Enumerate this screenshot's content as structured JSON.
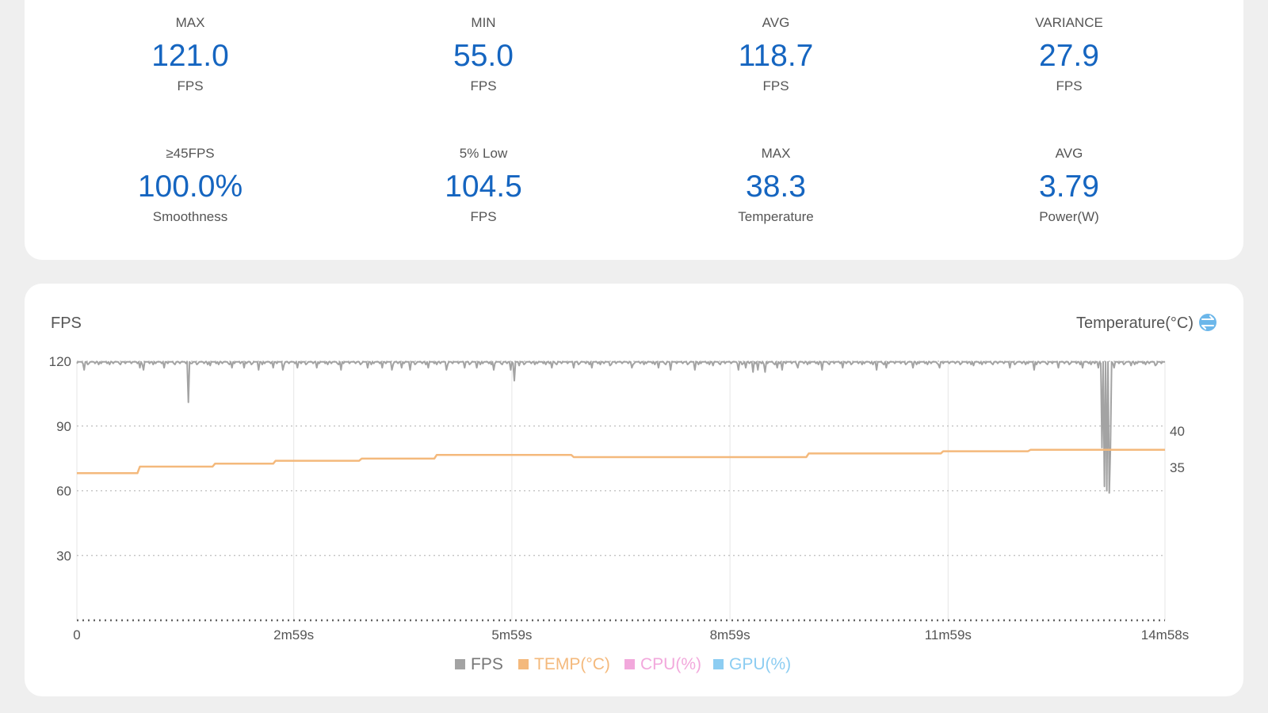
{
  "stats": [
    {
      "label": "MAX",
      "value": "121.0",
      "unit": "FPS"
    },
    {
      "label": "MIN",
      "value": "55.0",
      "unit": "FPS"
    },
    {
      "label": "AVG",
      "value": "118.7",
      "unit": "FPS"
    },
    {
      "label": "VARIANCE",
      "value": "27.9",
      "unit": "FPS"
    },
    {
      "label": "≥45FPS",
      "value": "100.0%",
      "unit": "Smoothness"
    },
    {
      "label": "5% Low",
      "value": "104.5",
      "unit": "FPS"
    },
    {
      "label": "MAX",
      "value": "38.3",
      "unit": "Temperature"
    },
    {
      "label": "AVG",
      "value": "3.79",
      "unit": "Power(W)"
    }
  ],
  "colors": {
    "accent": "#1565c0",
    "fps": "#a3a3a3",
    "temp": "#f4b97c",
    "cpu": "#f2a8dc",
    "gpu": "#8ccdf2",
    "swap_icon": "#6cb7ea"
  },
  "chart_data": {
    "type": "line",
    "left_axis_title": "FPS",
    "right_axis_title": "Temperature(°C)",
    "swap_icon": "swap-axis-icon",
    "x_ticks": [
      {
        "t": 0,
        "label": "0"
      },
      {
        "t": 179,
        "label": "2m59s"
      },
      {
        "t": 359,
        "label": "5m59s"
      },
      {
        "t": 539,
        "label": "8m59s"
      },
      {
        "t": 719,
        "label": "11m59s"
      },
      {
        "t": 898,
        "label": "14m58s"
      }
    ],
    "xlim": [
      0,
      898
    ],
    "y_left_ticks": [
      30,
      60,
      90,
      120
    ],
    "y_left_lim": [
      0,
      120
    ],
    "y_right_ticks": [
      35,
      40
    ],
    "y_right_lim": [
      14.1,
      49.5
    ],
    "legend": [
      {
        "name": "FPS",
        "color": "#a3a3a3"
      },
      {
        "name": "TEMP(°C)",
        "color": "#f4b97c"
      },
      {
        "name": "CPU(%)",
        "color": "#f2a8dc"
      },
      {
        "name": "GPU(%)",
        "color": "#8ccdf2"
      }
    ],
    "series": [
      {
        "name": "FPS",
        "axis": "left",
        "baseline": 120,
        "dips": [
          [
            6,
            116
          ],
          [
            52,
            117
          ],
          [
            55,
            116
          ],
          [
            72,
            117
          ],
          [
            92,
            101
          ],
          [
            94,
            119
          ],
          [
            110,
            118
          ],
          [
            128,
            117
          ],
          [
            138,
            117
          ],
          [
            150,
            116
          ],
          [
            162,
            117
          ],
          [
            170,
            116
          ],
          [
            182,
            117
          ],
          [
            198,
            117
          ],
          [
            200,
            119
          ],
          [
            218,
            116
          ],
          [
            240,
            117
          ],
          [
            252,
            117
          ],
          [
            260,
            116
          ],
          [
            268,
            117
          ],
          [
            275,
            116
          ],
          [
            290,
            117
          ],
          [
            305,
            116
          ],
          [
            320,
            117
          ],
          [
            330,
            117
          ],
          [
            344,
            116
          ],
          [
            358,
            116
          ],
          [
            361,
            111
          ],
          [
            365,
            118
          ],
          [
            392,
            117
          ],
          [
            410,
            117
          ],
          [
            425,
            117
          ],
          [
            440,
            118
          ],
          [
            458,
            117
          ],
          [
            480,
            117
          ],
          [
            490,
            116
          ],
          [
            510,
            116
          ],
          [
            525,
            118
          ],
          [
            546,
            116
          ],
          [
            552,
            117
          ],
          [
            558,
            115
          ],
          [
            562,
            116
          ],
          [
            568,
            115
          ],
          [
            578,
            117
          ],
          [
            582,
            116
          ],
          [
            595,
            117
          ],
          [
            615,
            116
          ],
          [
            632,
            117
          ],
          [
            660,
            116
          ],
          [
            668,
            117
          ],
          [
            690,
            117
          ],
          [
            712,
            117
          ],
          [
            740,
            118
          ],
          [
            770,
            117
          ],
          [
            790,
            116
          ],
          [
            810,
            117
          ],
          [
            830,
            117
          ],
          [
            843,
            117
          ],
          [
            846,
            80
          ],
          [
            848,
            62
          ],
          [
            850,
            60
          ],
          [
            852,
            59
          ],
          [
            853,
            80
          ],
          [
            856,
            117
          ],
          [
            860,
            119
          ],
          [
            870,
            118
          ],
          [
            890,
            118
          ]
        ]
      },
      {
        "name": "TEMP(°C)",
        "axis": "right",
        "values": [
          [
            0,
            34.2
          ],
          [
            50,
            34.2
          ],
          [
            52,
            35.1
          ],
          [
            112,
            35.1
          ],
          [
            114,
            35.5
          ],
          [
            162,
            35.5
          ],
          [
            164,
            35.9
          ],
          [
            233,
            35.9
          ],
          [
            235,
            36.2
          ],
          [
            295,
            36.2
          ],
          [
            297,
            36.7
          ],
          [
            408,
            36.7
          ],
          [
            410,
            36.4
          ],
          [
            602,
            36.4
          ],
          [
            604,
            36.9
          ],
          [
            713,
            36.9
          ],
          [
            715,
            37.2
          ],
          [
            785,
            37.2
          ],
          [
            787,
            37.4
          ],
          [
            898,
            37.4
          ]
        ]
      }
    ]
  }
}
